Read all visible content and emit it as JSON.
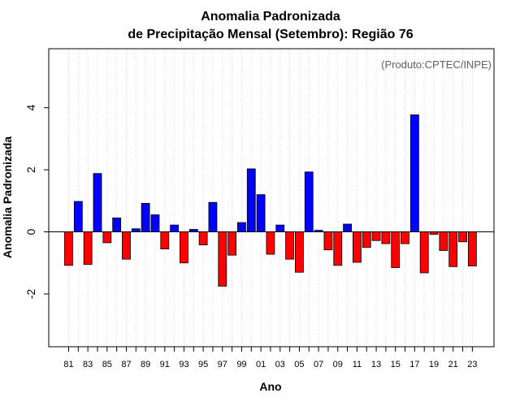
{
  "chart_data": {
    "type": "bar",
    "title_line1": "Anomalia Padronizada",
    "title_line2": "de Precipitação Mensal (Setembro): Região 76",
    "xlabel": "Ano",
    "ylabel": "Anomalia Padronizada",
    "annotation": "(Produto:CPTEC/INPE)",
    "ylim": [
      -3.7,
      5.9
    ],
    "yticks": [
      -2,
      0,
      2,
      4
    ],
    "ytick_labels": [
      "-2",
      "0",
      "2",
      "4"
    ],
    "x_tick_labels": [
      "81",
      "83",
      "85",
      "87",
      "89",
      "91",
      "93",
      "95",
      "97",
      "99",
      "01",
      "03",
      "05",
      "07",
      "09",
      "11",
      "13",
      "15",
      "17",
      "19",
      "21",
      "23"
    ],
    "categories": [
      "1981",
      "1982",
      "1983",
      "1984",
      "1985",
      "1986",
      "1987",
      "1988",
      "1989",
      "1990",
      "1991",
      "1992",
      "1993",
      "1994",
      "1995",
      "1996",
      "1997",
      "1998",
      "1999",
      "2000",
      "2001",
      "2002",
      "2003",
      "2004",
      "2005",
      "2006",
      "2007",
      "2008",
      "2009",
      "2010",
      "2011",
      "2012",
      "2013",
      "2014",
      "2015",
      "2016",
      "2017",
      "2018",
      "2019",
      "2020",
      "2021",
      "2022",
      "2023"
    ],
    "values": [
      -1.08,
      0.98,
      -1.05,
      1.88,
      -0.35,
      0.45,
      -0.88,
      0.1,
      0.92,
      0.55,
      -0.55,
      0.22,
      -1.0,
      0.08,
      -0.42,
      0.95,
      -1.75,
      -0.75,
      0.3,
      2.03,
      1.2,
      -0.72,
      0.22,
      -0.88,
      -1.3,
      1.93,
      0.05,
      -0.58,
      -1.08,
      0.25,
      -0.98,
      -0.5,
      -0.28,
      -0.38,
      -1.15,
      -0.38,
      3.77,
      -1.32,
      -0.08,
      -0.6,
      -1.12,
      -0.32,
      -1.1
    ],
    "colors": {
      "positive": "#0000ff",
      "negative": "#ff0000",
      "grid": "#d3d3d3",
      "frame": "#000000"
    }
  }
}
